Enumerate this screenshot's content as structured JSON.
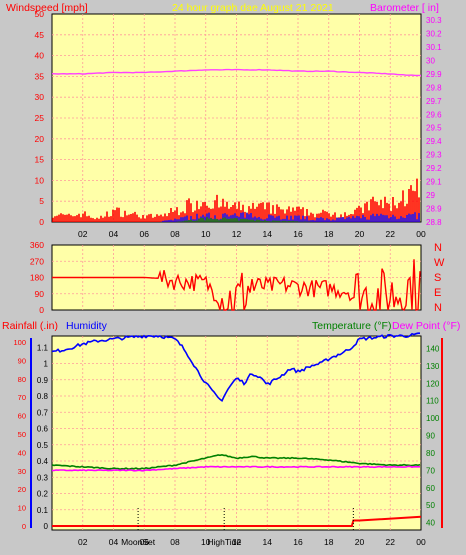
{
  "header": {
    "left_label": "Windspeed [mph]",
    "center_label": "24 hour graph dae   August 21 2021",
    "right_label": "Barometer [ in]"
  },
  "lower_header": {
    "rain_label": "Rainfall (.in)",
    "humidity_label": "Humidity",
    "temp_label": "Temperature (°F)",
    "dew_label": "Dew Point (°F)"
  },
  "colors": {
    "background": "#c8c8c8",
    "plot_bg": "#ffffa8",
    "grid": "#ff9a9a",
    "wind": "#ff0000",
    "gust": "#0000ff",
    "avg": "#008000",
    "barometer": "#ff40ff",
    "direction": "#ff0000",
    "humidity": "#0000ff",
    "temperature": "#008000",
    "dewpoint": "#ff00ff",
    "rainfall": "#ff0000",
    "tide_marker": "#000000",
    "label_red": "#ff0000",
    "label_magenta": "#ff00ff",
    "label_yellow": "#ffff00",
    "label_blue": "#0000ff",
    "label_green": "#008000"
  },
  "x_ticks": [
    "02",
    "04",
    "06",
    "08",
    "10",
    "12",
    "14",
    "16",
    "18",
    "20",
    "22",
    "00"
  ],
  "direction_letters": [
    "N",
    "W",
    "S",
    "E",
    "N"
  ],
  "events": [
    {
      "label": "MoonSet",
      "hour": 5.6
    },
    {
      "label": "HighTide",
      "hour": 11.2
    },
    {
      "label": "",
      "hour": 19.6
    }
  ],
  "chart_data": [
    {
      "type": "line",
      "title": "24 hour graph dae   August 21 2021",
      "ylabel": "Windspeed [mph]",
      "y2label": "Barometer [ in]",
      "ylim": [
        0,
        50
      ],
      "y_ticks": [
        0,
        5,
        10,
        15,
        20,
        25,
        30,
        35,
        40,
        45,
        50
      ],
      "y2lim": [
        28.8,
        30.3
      ],
      "y2_ticks": [
        "28.8",
        "28.9",
        "29",
        "29.1",
        "29.2",
        "29.3",
        "29.4",
        "29.5",
        "29.6",
        "29.7",
        "29.8",
        "29.9",
        "30",
        "30.1",
        "30.2",
        "30.3"
      ],
      "x_range_hours": [
        0,
        24
      ],
      "series": [
        {
          "key": "barometer",
          "axis": "right",
          "x": [
            0,
            2,
            4,
            6,
            8,
            10,
            11,
            12,
            13,
            14,
            16,
            18,
            20,
            22,
            23,
            24
          ],
          "y": [
            29.9,
            29.9,
            29.91,
            29.91,
            29.92,
            29.93,
            29.93,
            29.93,
            29.93,
            29.93,
            29.92,
            29.92,
            29.91,
            29.9,
            29.89,
            29.89
          ]
        },
        {
          "key": "wind_max",
          "axis": "left",
          "x": [
            0,
            1,
            2,
            3,
            4,
            5,
            6,
            7,
            8,
            9,
            10,
            11,
            12,
            13,
            14,
            15,
            16,
            17,
            18,
            19,
            20,
            21,
            22,
            23,
            24
          ],
          "y": [
            3,
            2,
            3,
            1,
            4,
            3,
            2,
            2,
            4,
            6,
            8,
            6,
            5,
            5,
            5,
            4,
            4,
            3,
            3,
            3,
            4,
            7,
            6,
            9,
            11
          ]
        },
        {
          "key": "gust",
          "axis": "left",
          "x": [
            0,
            4,
            6,
            7,
            8,
            9,
            10,
            11,
            12,
            13,
            14,
            15,
            16,
            17,
            18,
            19,
            20,
            21,
            22,
            23,
            24
          ],
          "y": [
            0,
            0,
            0,
            0,
            1,
            1.5,
            2,
            2,
            2,
            2,
            2,
            1.5,
            1.5,
            1,
            1,
            1,
            1.5,
            2,
            2,
            2,
            2
          ]
        },
        {
          "key": "avg",
          "axis": "left",
          "x": [
            0,
            8,
            9,
            10,
            11,
            12,
            13,
            14,
            15,
            16,
            17,
            18,
            24
          ],
          "y": [
            0,
            0,
            0.5,
            1,
            1,
            0.8,
            0.6,
            0.4,
            0.3,
            0.2,
            0,
            0,
            0
          ]
        }
      ]
    },
    {
      "type": "line",
      "ylabel": "Wind direction",
      "ylim": [
        0,
        360
      ],
      "y_ticks": [
        0,
        90,
        180,
        270,
        360
      ],
      "x_range_hours": [
        0,
        24
      ],
      "series": [
        {
          "key": "direction",
          "x": [
            0,
            3,
            6,
            7,
            8,
            9,
            10,
            11,
            12,
            13,
            14,
            15,
            16,
            17,
            18,
            19,
            20,
            21,
            22,
            23,
            24
          ],
          "y": [
            180,
            180,
            180,
            175,
            160,
            155,
            150,
            60,
            50,
            140,
            130,
            140,
            130,
            120,
            120,
            110,
            90,
            60,
            80,
            120,
            140
          ]
        }
      ]
    },
    {
      "type": "line",
      "ylabel": "Rainfall (.in)",
      "y2label": "Temperature (°F)",
      "rain_lim": [
        0,
        100
      ],
      "rain_ticks": [
        0,
        10,
        20,
        30,
        40,
        50,
        60,
        70,
        80,
        90,
        100
      ],
      "humidity_lim": [
        0,
        1.2
      ],
      "humidity_ticks": [
        "0",
        "0.1",
        "0.2",
        "0.3",
        "0.4",
        "0.5",
        "0.6",
        "0.7",
        "0.8",
        "0.9",
        "1",
        "1.1"
      ],
      "temp_lim": [
        30,
        150
      ],
      "temp_ticks": [
        40,
        50,
        60,
        70,
        80,
        90,
        100,
        110,
        120,
        130,
        140
      ],
      "x_range_hours": [
        0,
        24
      ],
      "series": [
        {
          "key": "humidity",
          "name": "Humidity",
          "axis": "humidity",
          "x": [
            0,
            1,
            2,
            3,
            4,
            5,
            6,
            7,
            8,
            8.5,
            9,
            9.5,
            10,
            10.5,
            11,
            11.5,
            12,
            12.5,
            13,
            13.5,
            14,
            14.5,
            15,
            15.5,
            16,
            16.5,
            17,
            17.5,
            18,
            18.5,
            19,
            19.5,
            20,
            21,
            22,
            23,
            24
          ],
          "y": [
            1.07,
            1.09,
            1.12,
            1.14,
            1.15,
            1.16,
            1.17,
            1.17,
            1.15,
            1.1,
            1.03,
            0.95,
            0.88,
            0.82,
            0.77,
            0.85,
            0.91,
            0.88,
            0.94,
            0.92,
            0.87,
            0.9,
            0.93,
            0.97,
            0.95,
            0.97,
            0.99,
            1.0,
            1.03,
            1.05,
            1.07,
            1.1,
            1.15,
            1.16,
            1.17,
            1.17,
            1.18
          ]
        },
        {
          "key": "temperature",
          "name": "Temperature (°F)",
          "axis": "temp",
          "x": [
            0,
            2,
            4,
            6,
            8,
            10,
            11,
            12,
            13,
            14,
            16,
            18,
            20,
            22,
            24
          ],
          "y": [
            73,
            72,
            71,
            71,
            73,
            77,
            79,
            77,
            78,
            77,
            77,
            76,
            74,
            73,
            73
          ]
        },
        {
          "key": "dewpoint",
          "name": "Dew Point (°F)",
          "axis": "temp",
          "x": [
            0,
            2,
            4,
            6,
            8,
            10,
            12,
            14,
            16,
            18,
            20,
            22,
            24
          ],
          "y": [
            70,
            70,
            70,
            70,
            71,
            72,
            72,
            72,
            72,
            72,
            72,
            72,
            72
          ]
        },
        {
          "key": "rainfall",
          "name": "Rainfall (.in)",
          "axis": "rain",
          "x": [
            0,
            19.5,
            19.6,
            20,
            24
          ],
          "y": [
            0,
            0,
            3,
            3,
            5
          ]
        }
      ]
    }
  ]
}
